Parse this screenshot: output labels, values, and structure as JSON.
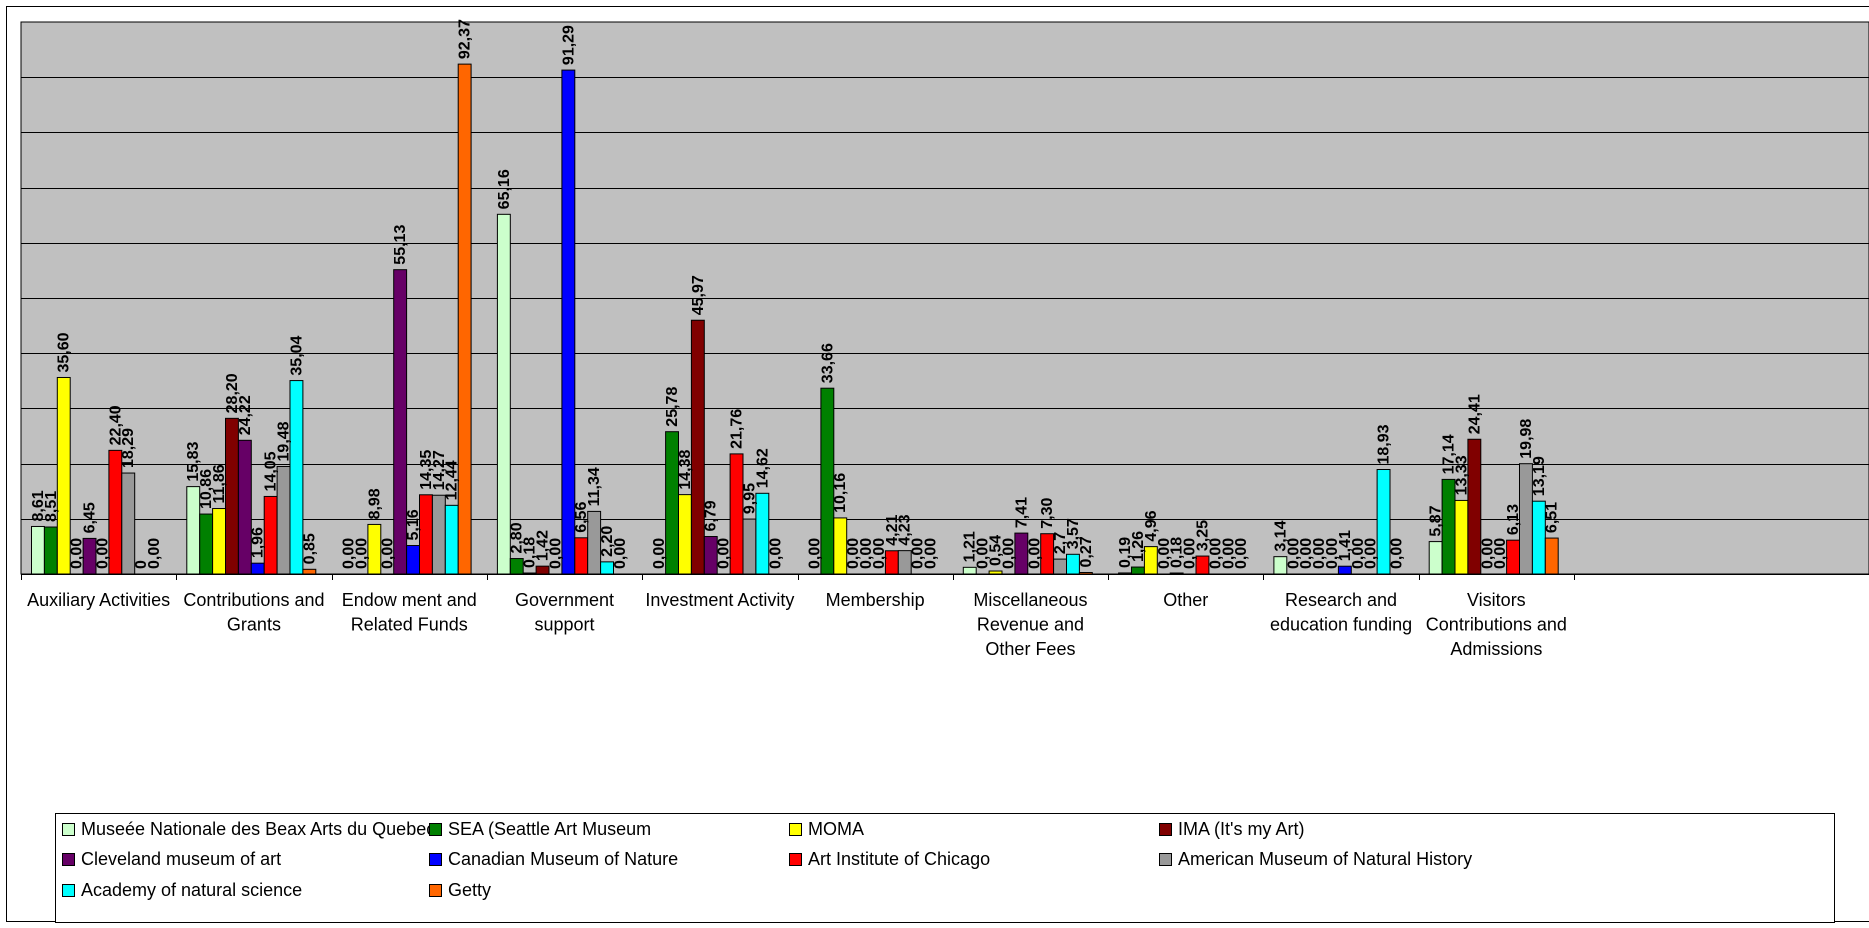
{
  "chart_data": {
    "type": "bar",
    "ylim": [
      0,
      100
    ],
    "grid": true,
    "plot_background": "#C0C0C0",
    "legend_position": "bottom",
    "categories": [
      [
        "Auxiliary Activities"
      ],
      [
        "Contributions and",
        "Grants"
      ],
      [
        "Endow ment and",
        "Related Funds"
      ],
      [
        "Government",
        "support"
      ],
      [
        "Investment Activity"
      ],
      [
        "Membership"
      ],
      [
        "Miscellaneous",
        "Revenue and",
        "Other Fees"
      ],
      [
        "Other"
      ],
      [
        "Research and",
        "education funding"
      ],
      [
        "Visitors",
        "Contributions and",
        "Admissions"
      ]
    ],
    "series": [
      {
        "name": "Museée Nationale des Beax Arts du Quebec",
        "color": "#CCFFCC",
        "values": [
          8.61,
          15.83,
          0,
          65.16,
          0,
          0,
          1.21,
          0.19,
          3.14,
          5.87
        ],
        "labels": [
          "8,61",
          "15,83",
          "0,00",
          "65,16",
          "0,00",
          "0,00",
          "1,21",
          "0,19",
          "3,14",
          "5,87"
        ]
      },
      {
        "name": "SEA (Seattle Art Museum",
        "color": "#008000",
        "values": [
          8.51,
          10.86,
          0,
          2.8,
          25.78,
          33.66,
          0,
          1.26,
          0,
          17.14
        ],
        "labels": [
          "8,51",
          "10,86",
          "0,00",
          "2,80",
          "25,78",
          "33,66",
          "0,00",
          "1,26",
          "0,00",
          "17,14"
        ]
      },
      {
        "name": "MOMA",
        "color": "#FFFF00",
        "values": [
          35.6,
          11.86,
          8.98,
          0.18,
          14.38,
          10.16,
          0.54,
          4.96,
          0,
          13.33
        ],
        "labels": [
          "35,60",
          "11,86",
          "8,98",
          "0,18",
          "14,38",
          "10,16",
          "0,54",
          "4,96",
          "0,00",
          "13,33"
        ]
      },
      {
        "name": "IMA (It's my Art)",
        "color": "#800000",
        "values": [
          0,
          28.2,
          0,
          1.42,
          45.97,
          0,
          0,
          0,
          0,
          24.41
        ],
        "labels": [
          "0,00",
          "28,20",
          "0,00",
          "1,42",
          "45,97",
          "0,00",
          "0,00",
          "0,00",
          "0,00",
          "24,41"
        ]
      },
      {
        "name": "Cleveland museum of art",
        "color": "#660066",
        "values": [
          6.45,
          24.22,
          55.13,
          0,
          6.79,
          0,
          7.41,
          0.18,
          0,
          0
        ],
        "labels": [
          "6,45",
          "24,22",
          "55,13",
          "0,00",
          "6,79",
          "0,00",
          "7,41",
          "0,18",
          "0,00",
          "0,00"
        ]
      },
      {
        "name": "Canadian Museum of Nature",
        "color": "#0000FF",
        "values": [
          0,
          1.96,
          5.16,
          91.29,
          0,
          0,
          0,
          0,
          1.41,
          0
        ],
        "labels": [
          "0,00",
          "1,96",
          "5,16",
          "91,29",
          "0,00",
          "0,00",
          "0,00",
          "0,00",
          "1,41",
          "0,00"
        ]
      },
      {
        "name": "Art Institute of Chicago",
        "color": "#FF0000",
        "values": [
          22.4,
          14.05,
          14.35,
          6.56,
          21.76,
          4.21,
          7.3,
          3.25,
          0,
          6.13
        ],
        "labels": [
          "22,40",
          "14,05",
          "14,35",
          "6,56",
          "21,76",
          "4,21",
          "7,30",
          "3,25",
          "0,00",
          "6,13"
        ]
      },
      {
        "name": "American Museum of Natural History",
        "color": "#999999",
        "values": [
          18.29,
          19.48,
          14.27,
          11.34,
          9.95,
          4.23,
          2.7,
          0,
          0,
          19.98
        ],
        "labels": [
          "18,29",
          "19,48",
          "14,27",
          "11,34",
          "9,95",
          "4,23",
          "2,7",
          "0,00",
          "0,00",
          "19,98"
        ]
      },
      {
        "name": "Academy of natural science",
        "color": "#00FFFF",
        "values": [
          0,
          35.04,
          12.44,
          2.2,
          14.62,
          0,
          3.57,
          0,
          18.93,
          13.19
        ],
        "labels": [
          "0",
          "35,04",
          "12,44",
          "2,20",
          "14,62",
          "0,00",
          "3,57",
          "0,00",
          "18,93",
          "13,19"
        ]
      },
      {
        "name": "Getty",
        "color": "#FF6600",
        "values": [
          0,
          0.85,
          92.37,
          0,
          0,
          0,
          0.27,
          0,
          0,
          6.51
        ],
        "labels": [
          "0,00",
          "0,85",
          "92,37",
          "0,00",
          "0,00",
          "0,00",
          "0,27",
          "0,00",
          "0,00",
          "6,51"
        ]
      }
    ]
  }
}
